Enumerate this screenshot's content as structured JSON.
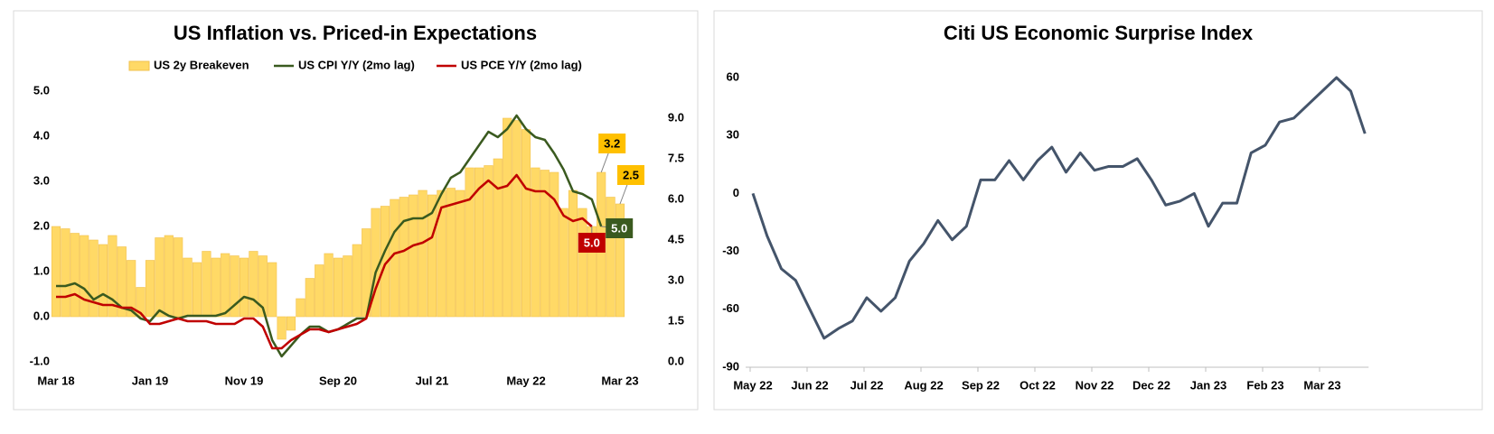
{
  "chart_data": [
    {
      "type": "combo",
      "title": "US Inflation vs. Priced-in Expectations",
      "categories": [
        "Mar 18",
        null,
        null,
        null,
        null,
        null,
        null,
        null,
        null,
        null,
        "Jan 19",
        null,
        null,
        null,
        null,
        null,
        null,
        null,
        null,
        null,
        "Nov 19",
        null,
        null,
        null,
        null,
        null,
        null,
        null,
        null,
        null,
        "Sep 20",
        null,
        null,
        null,
        null,
        null,
        null,
        null,
        null,
        null,
        "Jul 21",
        null,
        null,
        null,
        null,
        null,
        null,
        null,
        null,
        null,
        "May 22",
        null,
        null,
        null,
        null,
        null,
        null,
        null,
        null,
        null,
        "Mar 23"
      ],
      "series": [
        {
          "name": "US 2y Breakeven",
          "type": "bar",
          "color": "#FFD966",
          "values": [
            2.0,
            1.95,
            1.85,
            1.8,
            1.7,
            1.6,
            1.8,
            1.55,
            1.25,
            0.65,
            1.25,
            1.75,
            1.8,
            1.75,
            1.3,
            1.2,
            1.45,
            1.3,
            1.4,
            1.35,
            1.3,
            1.45,
            1.35,
            1.2,
            -0.5,
            -0.3,
            0.4,
            0.85,
            1.15,
            1.4,
            1.3,
            1.35,
            1.6,
            1.95,
            2.4,
            2.45,
            2.6,
            2.65,
            2.7,
            2.8,
            2.7,
            2.8,
            2.85,
            2.8,
            3.3,
            3.3,
            3.35,
            3.5,
            4.4,
            4.35,
            4.15,
            3.3,
            3.25,
            3.2,
            2.4,
            2.8,
            2.4,
            2.0,
            3.2,
            2.65,
            2.5
          ],
          "value_labels": [
            null,
            null,
            null,
            null,
            null,
            null,
            null,
            null,
            null,
            null,
            null,
            null,
            null,
            null,
            null,
            null,
            null,
            null,
            null,
            null,
            null,
            null,
            null,
            null,
            null,
            null,
            null,
            null,
            null,
            null,
            null,
            null,
            null,
            null,
            null,
            null,
            null,
            null,
            null,
            null,
            null,
            null,
            null,
            null,
            null,
            null,
            null,
            null,
            null,
            null,
            null,
            null,
            null,
            null,
            null,
            null,
            null,
            null,
            "3.2",
            null,
            "2.5"
          ]
        },
        {
          "name": "US CPI Y/Y (2mo lag)",
          "type": "line",
          "axis": "y2",
          "color": "#3A5A1F",
          "values": [
            2.8,
            2.8,
            2.9,
            2.7,
            2.3,
            2.5,
            2.3,
            2.0,
            1.9,
            1.6,
            1.5,
            1.9,
            1.7,
            1.6,
            1.7,
            1.7,
            1.7,
            1.7,
            1.8,
            2.1,
            2.4,
            2.3,
            2.0,
            0.8,
            0.2,
            0.6,
            1.0,
            1.3,
            1.3,
            1.1,
            1.2,
            1.4,
            1.6,
            1.6,
            3.3,
            4.1,
            4.8,
            5.2,
            5.3,
            5.3,
            5.5,
            6.2,
            6.8,
            7.0,
            7.5,
            8.0,
            8.5,
            8.3,
            8.6,
            9.1,
            8.6,
            8.3,
            8.2,
            7.7,
            7.1,
            6.3,
            6.2,
            6.0,
            5.0,
            null,
            null
          ],
          "value_labels": [
            null,
            null,
            null,
            null,
            null,
            null,
            null,
            null,
            null,
            null,
            null,
            null,
            null,
            null,
            null,
            null,
            null,
            null,
            null,
            null,
            null,
            null,
            null,
            null,
            null,
            null,
            null,
            null,
            null,
            null,
            null,
            null,
            null,
            null,
            null,
            null,
            null,
            null,
            null,
            null,
            null,
            null,
            null,
            null,
            null,
            null,
            null,
            null,
            null,
            null,
            null,
            null,
            null,
            null,
            null,
            null,
            null,
            null,
            "5.0",
            null,
            null
          ]
        },
        {
          "name": "US PCE Y/Y (2mo lag)",
          "type": "line",
          "axis": "y2",
          "color": "#C00000",
          "values": [
            2.4,
            2.4,
            2.5,
            2.3,
            2.2,
            2.1,
            2.1,
            2.0,
            2.0,
            1.8,
            1.4,
            1.4,
            1.5,
            1.6,
            1.5,
            1.5,
            1.5,
            1.4,
            1.4,
            1.4,
            1.6,
            1.6,
            1.3,
            0.5,
            0.5,
            0.8,
            1.0,
            1.2,
            1.2,
            1.1,
            1.2,
            1.3,
            1.4,
            1.6,
            2.7,
            3.6,
            4.0,
            4.1,
            4.3,
            4.4,
            4.6,
            5.7,
            5.8,
            5.9,
            6.0,
            6.4,
            6.7,
            6.4,
            6.5,
            6.9,
            6.4,
            6.3,
            6.3,
            6.0,
            5.4,
            5.2,
            5.3,
            5.0,
            null,
            null,
            null
          ],
          "value_labels": [
            null,
            null,
            null,
            null,
            null,
            null,
            null,
            null,
            null,
            null,
            null,
            null,
            null,
            null,
            null,
            null,
            null,
            null,
            null,
            null,
            null,
            null,
            null,
            null,
            null,
            null,
            null,
            null,
            null,
            null,
            null,
            null,
            null,
            null,
            null,
            null,
            null,
            null,
            null,
            null,
            null,
            null,
            null,
            null,
            null,
            null,
            null,
            null,
            null,
            null,
            null,
            null,
            null,
            null,
            null,
            null,
            null,
            "5.0",
            null,
            null,
            null
          ]
        }
      ],
      "ylim": [
        -1,
        5
      ],
      "yticks": [
        {
          "value": -1,
          "label": "-1.0"
        },
        {
          "value": 0,
          "label": "0.0"
        },
        {
          "value": 1,
          "label": "1.0"
        },
        {
          "value": 2,
          "label": "2.0"
        },
        {
          "value": 3,
          "label": "3.0"
        },
        {
          "value": 4,
          "label": "4.0"
        },
        {
          "value": 5,
          "label": "5.0"
        }
      ],
      "y2lim": [
        0,
        10
      ],
      "y2ticks": [
        {
          "value": 0,
          "label": "0.0"
        },
        1.5,
        {
          "value": 3,
          "label": "3.0"
        },
        4.5,
        {
          "value": 6,
          "label": "6.0"
        },
        7.5,
        {
          "value": 9,
          "label": "9.0"
        }
      ],
      "grid": false,
      "legend": "top"
    },
    {
      "type": "line",
      "title": "Citi US Economic Surprise Index",
      "color": "#44546A",
      "categories": [
        "May 22",
        null,
        null,
        null,
        "Jun 22",
        null,
        null,
        null,
        "Jul 22",
        null,
        null,
        null,
        "Aug 22",
        null,
        null,
        null,
        "Sep 22",
        null,
        null,
        null,
        "Oct 22",
        null,
        null,
        null,
        "Nov 22",
        null,
        null,
        null,
        "Dec 22",
        null,
        null,
        null,
        "Jan 23",
        null,
        null,
        null,
        "Feb 23",
        null,
        null,
        null,
        "Mar 23",
        null,
        null,
        null
      ],
      "values": [
        0,
        -22,
        -39,
        -45,
        -60,
        -75,
        -70,
        -66,
        -54,
        -61,
        -54,
        -35,
        -26,
        -14,
        -24,
        -17,
        7,
        7,
        17,
        7,
        17,
        24,
        11,
        21,
        12,
        14,
        14,
        18,
        7,
        -6,
        -4,
        0,
        -17,
        -5,
        -5,
        21,
        25,
        37,
        39,
        46,
        53,
        60,
        53,
        31
      ],
      "ylim": [
        -90,
        60
      ],
      "yticks": [
        -90,
        -60,
        -30,
        0,
        30,
        60
      ],
      "grid": false
    }
  ]
}
